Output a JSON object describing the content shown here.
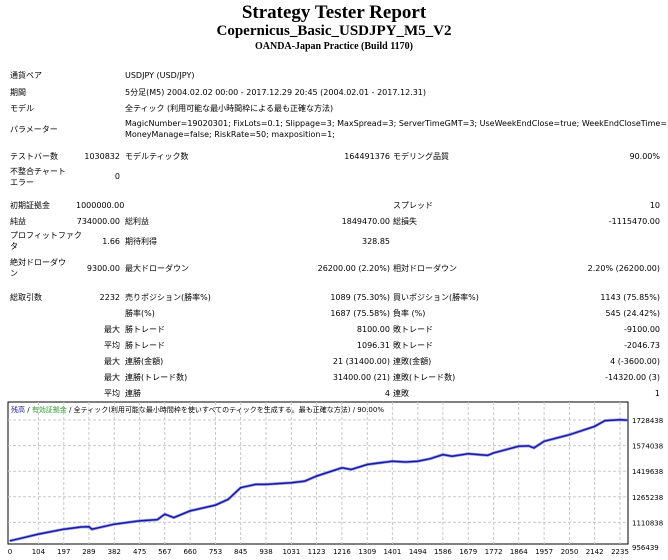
{
  "title": "Strategy Tester Report",
  "subtitle": "Copernicus_Basic_USDJPY_M5_V2",
  "server": "OANDA-Japan Practice (Build 1170)",
  "info": {
    "symbol_label": "通貨ペア",
    "symbol": "USDJPY (USD/JPY)",
    "period_label": "期間",
    "period": "5分足(M5) 2004.02.02 00:00 - 2017.12.29 20:45 (2004.02.01 - 2017.12.31)",
    "model_label": "モデル",
    "model": "全ティック (利用可能な最小時間枠による最も正確な方法)",
    "params_label": "パラメーター",
    "params_1": "MagicNumber=19020301; FixLots=0.1; Slippage=3; MaxSpread=3; ServerTimeGMT=3; UseWeekEndClose=true; WeekEndCloseTime=1;",
    "params_2": "MoneyManage=false; RiskRate=50; maxposition=1;"
  },
  "stats": {
    "bars_label": "テストバー数",
    "bars": "1030832",
    "ticks_label": "モデルティック数",
    "ticks": "164491376",
    "quality_label": "モデリング品質",
    "quality": "90.00%",
    "mismatch_label_1": "不整合チャート",
    "mismatch_label_2": "エラー",
    "mismatch": "0",
    "deposit_label": "初期証拠金",
    "deposit": "1000000.00",
    "spread_label": "スプレッド",
    "spread": "10",
    "net_label": "純益",
    "net": "734000.00",
    "gross_profit_label": "総利益",
    "gross_profit": "1849470.00",
    "gross_loss_label": "総損失",
    "gross_loss": "-1115470.00",
    "pf_label_1": "プロフィットファク",
    "pf_label_2": "タ",
    "pf": "1.66",
    "expected_label": "期待利得",
    "expected": "328.85",
    "abs_dd_label_1": "絶対ドローダウ",
    "abs_dd_label_2": "ン",
    "abs_dd": "9300.00",
    "max_dd_label": "最大ドローダウン",
    "max_dd": "26200.00 (2.20%)",
    "rel_dd_label": "相対ドローダウン",
    "rel_dd": "2.20% (26200.00)",
    "trades_label": "総取引数",
    "trades": "2232",
    "short_label": "売りポジション(勝率%)",
    "short": "1089 (75.30%)",
    "long_label": "買いポジション(勝率%)",
    "long": "1143 (75.85%)",
    "win_label": "勝率(%)",
    "win": "1687 (75.58%)",
    "loss_label": "負率 (%)",
    "loss": "545 (24.42%)",
    "max_label": "最大",
    "avg_label": "平均",
    "win_trade_label": "勝トレード",
    "lose_trade_label": "敗トレード",
    "max_win": "8100.00",
    "max_loss": "-9100.00",
    "avg_win": "1096.31",
    "avg_loss": "-2046.73",
    "cons_win_amt_label": "連勝(金額)",
    "cons_win_amt": "21 (31400.00)",
    "cons_loss_amt_label": "連敗(金額)",
    "cons_loss_amt": "4 (-3600.00)",
    "cons_win_cnt_label": "連勝(トレード数)",
    "cons_win_cnt": "31400.00 (21)",
    "cons_loss_cnt_label": "連敗(トレード数)",
    "cons_loss_cnt": "-14320.00 (3)",
    "avg_wins_label": "連勝",
    "avg_wins": "4",
    "avg_losses_label": "連敗",
    "avg_losses": "1"
  },
  "chart_data": {
    "type": "line",
    "legend": {
      "balance": "残高",
      "equity": "有効証拠金",
      "model": "全ティック(利用可能な最小時間枠を使いすべてのティックを生成する。最も正確な方法)",
      "quality": "90.00%"
    },
    "x_ticks": [
      "0",
      "104",
      "197",
      "289",
      "382",
      "475",
      "567",
      "660",
      "753",
      "845",
      "938",
      "1031",
      "1123",
      "1216",
      "1309",
      "1401",
      "1494",
      "1586",
      "1679",
      "1772",
      "1864",
      "1957",
      "2050",
      "2142",
      "2235"
    ],
    "y_ticks": [
      "1728438",
      "1574038",
      "1419638",
      "1265238",
      "1110838",
      "956439"
    ],
    "xlim": [
      0,
      2270
    ],
    "ylim": [
      956439,
      1790000
    ],
    "grid": true,
    "colors": {
      "balance": "#1a1aa0",
      "equity": "#2ca02c",
      "grid": "#c8c8c8"
    },
    "x": [
      0,
      40,
      104,
      197,
      260,
      289,
      300,
      382,
      475,
      540,
      567,
      600,
      660,
      753,
      800,
      845,
      900,
      938,
      1031,
      1080,
      1123,
      1216,
      1250,
      1309,
      1401,
      1450,
      1494,
      1540,
      1586,
      1620,
      1679,
      1750,
      1772,
      1864,
      1900,
      1920,
      1957,
      2050,
      2142,
      2180,
      2235,
      2260
    ],
    "y": [
      1000000,
      1015000,
      1040000,
      1070000,
      1083000,
      1085000,
      1070000,
      1100000,
      1120000,
      1128000,
      1160000,
      1140000,
      1180000,
      1215000,
      1250000,
      1320000,
      1340000,
      1340000,
      1350000,
      1360000,
      1390000,
      1440000,
      1430000,
      1460000,
      1480000,
      1475000,
      1480000,
      1495000,
      1520000,
      1510000,
      1525000,
      1515000,
      1530000,
      1570000,
      1572000,
      1560000,
      1600000,
      1640000,
      1690000,
      1725000,
      1730000,
      1728000
    ]
  }
}
